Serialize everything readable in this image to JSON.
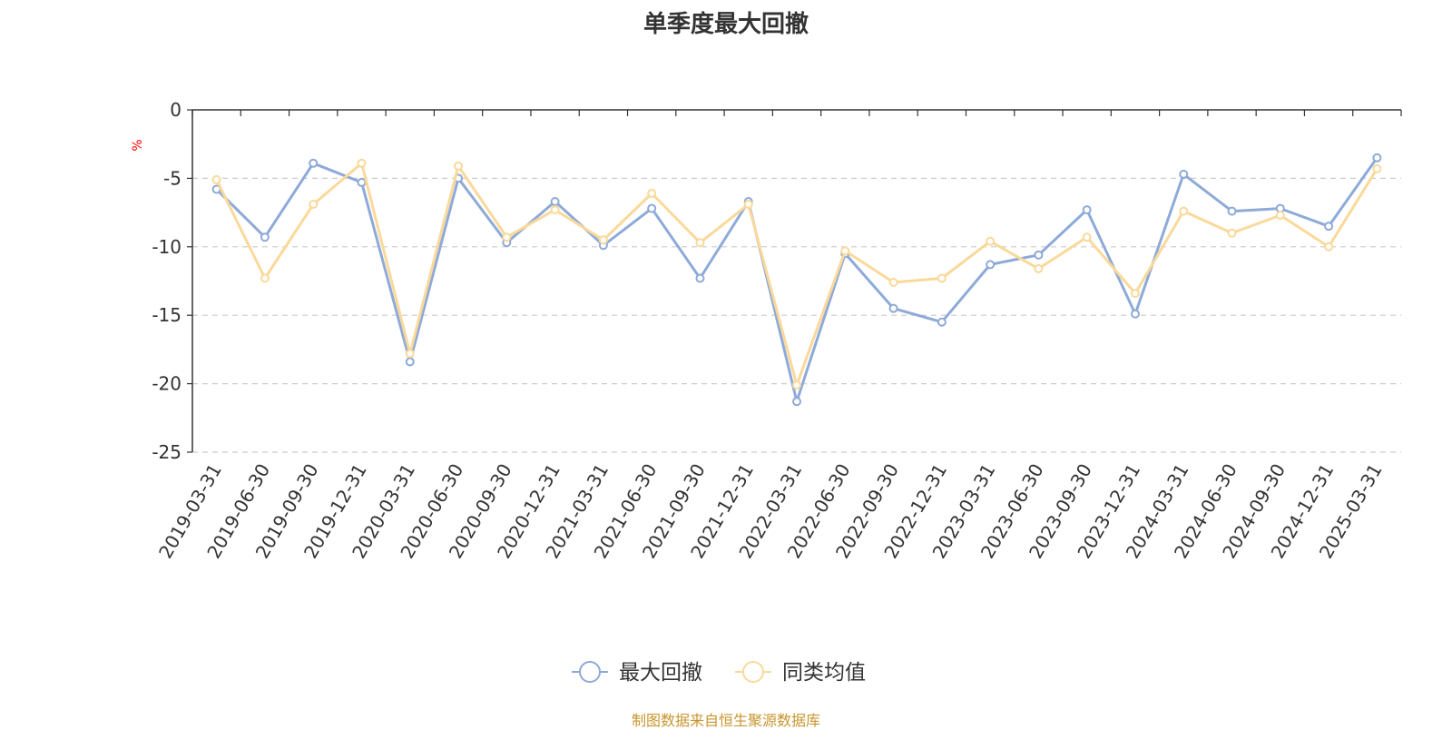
{
  "chart_data": {
    "type": "line",
    "title": "单季度最大回撤",
    "ylabel": "%",
    "ylim": [
      -25,
      0
    ],
    "yticks": [
      0,
      -5,
      -10,
      -15,
      -20,
      -25
    ],
    "grid": true,
    "legend_position": "bottom-center",
    "categories": [
      "2019-03-31",
      "2019-06-30",
      "2019-09-30",
      "2019-12-31",
      "2020-03-31",
      "2020-06-30",
      "2020-09-30",
      "2020-12-31",
      "2021-03-31",
      "2021-06-30",
      "2021-09-30",
      "2021-12-31",
      "2022-03-31",
      "2022-06-30",
      "2022-09-30",
      "2022-12-31",
      "2023-03-31",
      "2023-06-30",
      "2023-09-30",
      "2023-12-31",
      "2024-03-31",
      "2024-06-30",
      "2024-09-30",
      "2024-12-31",
      "2025-03-31"
    ],
    "series": [
      {
        "name": "最大回撤",
        "color": "#8eaad8",
        "values": [
          -5.8,
          -9.3,
          -3.9,
          -5.3,
          -18.4,
          -5.0,
          -9.7,
          -6.7,
          -9.9,
          -7.2,
          -12.3,
          -6.7,
          -21.3,
          -10.5,
          -14.5,
          -15.5,
          -11.3,
          -10.6,
          -7.3,
          -14.9,
          -4.7,
          -7.4,
          -7.2,
          -8.5,
          -3.5
        ]
      },
      {
        "name": "同类均值",
        "color": "#fad99a",
        "values": [
          -5.1,
          -12.3,
          -6.9,
          -3.9,
          -17.8,
          -4.1,
          -9.3,
          -7.3,
          -9.5,
          -6.1,
          -9.7,
          -6.9,
          -20.1,
          -10.3,
          -12.6,
          -12.3,
          -9.6,
          -11.6,
          -9.3,
          -13.4,
          -7.4,
          -9.0,
          -7.7,
          -10.0,
          -4.3
        ]
      }
    ]
  },
  "source_note": "制图数据来自恒生聚源数据库"
}
